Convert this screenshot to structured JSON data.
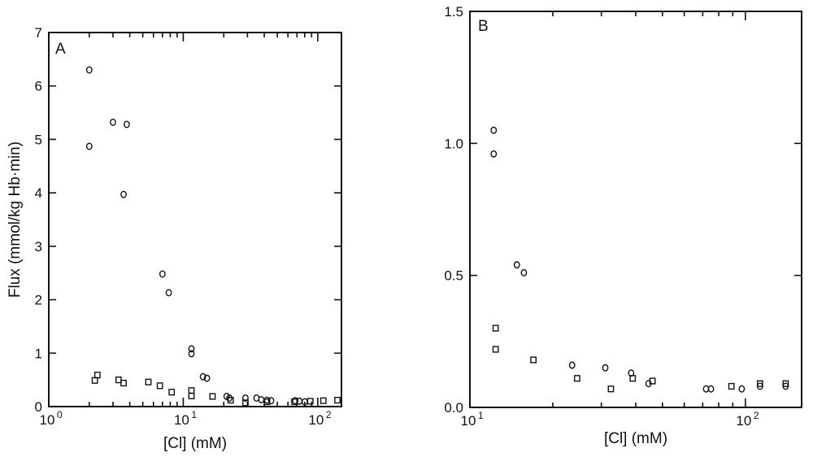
{
  "chart_data": [
    {
      "type": "scatter",
      "panel_label": "A",
      "xlabel": "[Cl] (mM)",
      "ylabel": "Flux (mmol/kg Hb·min)",
      "x_scale": "log",
      "xlim": [
        1,
        150
      ],
      "ylim": [
        0,
        7
      ],
      "x_ticks": [
        {
          "value": 1,
          "base": "10",
          "exp": "0"
        },
        {
          "value": 10,
          "base": "10",
          "exp": "1"
        },
        {
          "value": 100,
          "base": "10",
          "exp": "2"
        }
      ],
      "y_ticks": [
        {
          "value": 0,
          "label": "0"
        },
        {
          "value": 1,
          "label": "1"
        },
        {
          "value": 2,
          "label": "2"
        },
        {
          "value": 3,
          "label": "3"
        },
        {
          "value": 4,
          "label": "4"
        },
        {
          "value": 5,
          "label": "5"
        },
        {
          "value": 6,
          "label": "6"
        },
        {
          "value": 7,
          "label": "7"
        }
      ],
      "series": [
        {
          "marker": "circle",
          "points": [
            [
              2.0,
              6.3
            ],
            [
              2.0,
              4.87
            ],
            [
              3.0,
              5.32
            ],
            [
              3.8,
              5.28
            ],
            [
              3.6,
              3.97
            ],
            [
              7.0,
              2.48
            ],
            [
              7.8,
              2.13
            ],
            [
              11.5,
              1.08
            ],
            [
              11.5,
              0.99
            ],
            [
              14.0,
              0.56
            ],
            [
              15.0,
              0.53
            ],
            [
              21.0,
              0.19
            ],
            [
              22.0,
              0.16
            ],
            [
              29.0,
              0.16
            ],
            [
              35.0,
              0.16
            ],
            [
              38.0,
              0.13
            ],
            [
              42.0,
              0.12
            ],
            [
              45.0,
              0.11
            ],
            [
              68.0,
              0.11
            ],
            [
              73.0,
              0.1
            ],
            [
              80.0,
              0.09
            ]
          ]
        },
        {
          "marker": "square",
          "points": [
            [
              2.2,
              0.49
            ],
            [
              2.3,
              0.59
            ],
            [
              3.3,
              0.5
            ],
            [
              3.6,
              0.44
            ],
            [
              5.5,
              0.46
            ],
            [
              6.7,
              0.39
            ],
            [
              8.2,
              0.27
            ],
            [
              11.5,
              0.3
            ],
            [
              11.5,
              0.2
            ],
            [
              16.5,
              0.19
            ],
            [
              22.5,
              0.12
            ],
            [
              29.0,
              0.07
            ],
            [
              42.0,
              0.09
            ],
            [
              67.0,
              0.09
            ],
            [
              88.0,
              0.1
            ],
            [
              110.0,
              0.11
            ],
            [
              140.0,
              0.12
            ]
          ]
        }
      ]
    },
    {
      "type": "scatter",
      "panel_label": "B",
      "xlabel": "[Cl] (mM)",
      "ylabel": "",
      "x_scale": "log",
      "xlim": [
        10,
        160
      ],
      "ylim": [
        0,
        1.5
      ],
      "x_ticks": [
        {
          "value": 10,
          "base": "10",
          "exp": "1"
        },
        {
          "value": 100,
          "base": "10",
          "exp": "2"
        }
      ],
      "y_ticks": [
        {
          "value": 0,
          "label": "0.0"
        },
        {
          "value": 0.5,
          "label": "0.5"
        },
        {
          "value": 1.0,
          "label": "1.0"
        },
        {
          "value": 1.5,
          "label": "1.5"
        }
      ],
      "series": [
        {
          "marker": "circle",
          "points": [
            [
              12.2,
              1.05
            ],
            [
              12.2,
              0.96
            ],
            [
              14.8,
              0.54
            ],
            [
              15.7,
              0.51
            ],
            [
              23.5,
              0.16
            ],
            [
              31.0,
              0.15
            ],
            [
              38.5,
              0.13
            ],
            [
              44.5,
              0.09
            ],
            [
              72.0,
              0.07
            ],
            [
              75.0,
              0.07
            ],
            [
              97.0,
              0.07
            ],
            [
              113.0,
              0.08
            ],
            [
              140.0,
              0.08
            ]
          ]
        },
        {
          "marker": "square",
          "points": [
            [
              12.4,
              0.3
            ],
            [
              12.4,
              0.22
            ],
            [
              17.0,
              0.18
            ],
            [
              24.5,
              0.11
            ],
            [
              32.5,
              0.07
            ],
            [
              39.0,
              0.11
            ],
            [
              46.0,
              0.1
            ],
            [
              89.0,
              0.08
            ],
            [
              113.0,
              0.09
            ],
            [
              140.0,
              0.09
            ]
          ]
        }
      ]
    }
  ]
}
